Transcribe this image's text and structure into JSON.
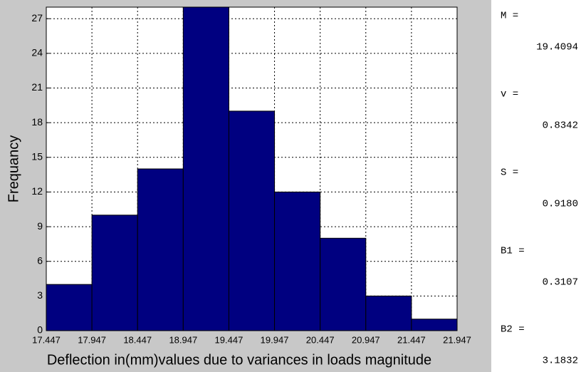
{
  "chart_data": {
    "type": "histogram",
    "xlabel": "Deflection in(mm)values due to variances in loads magnitude",
    "ylabel": "Frequancy",
    "bins": [
      17.447,
      17.947,
      18.447,
      18.947,
      19.447,
      19.947,
      20.447,
      20.947,
      21.447,
      21.947
    ],
    "values": [
      4,
      10,
      14,
      28,
      19,
      12,
      8,
      3,
      1
    ],
    "color": "#000080",
    "xlim": [
      17.447,
      21.947
    ],
    "xticks": [
      17.447,
      17.947,
      18.447,
      18.947,
      19.447,
      19.947,
      20.447,
      20.947,
      21.447,
      21.947
    ],
    "ylim": [
      0,
      28
    ],
    "yticks": [
      0,
      3,
      6,
      9,
      12,
      15,
      18,
      21,
      24,
      27
    ],
    "grid": true
  },
  "stats": [
    {
      "label": "M =",
      "value": "19.4094"
    },
    {
      "label": "v =",
      "value": "0.8342"
    },
    {
      "label": "S =",
      "value": "0.9180"
    },
    {
      "label": "B1 =",
      "value": "0.3107"
    },
    {
      "label": "B2 =",
      "value": "3.1832"
    }
  ]
}
